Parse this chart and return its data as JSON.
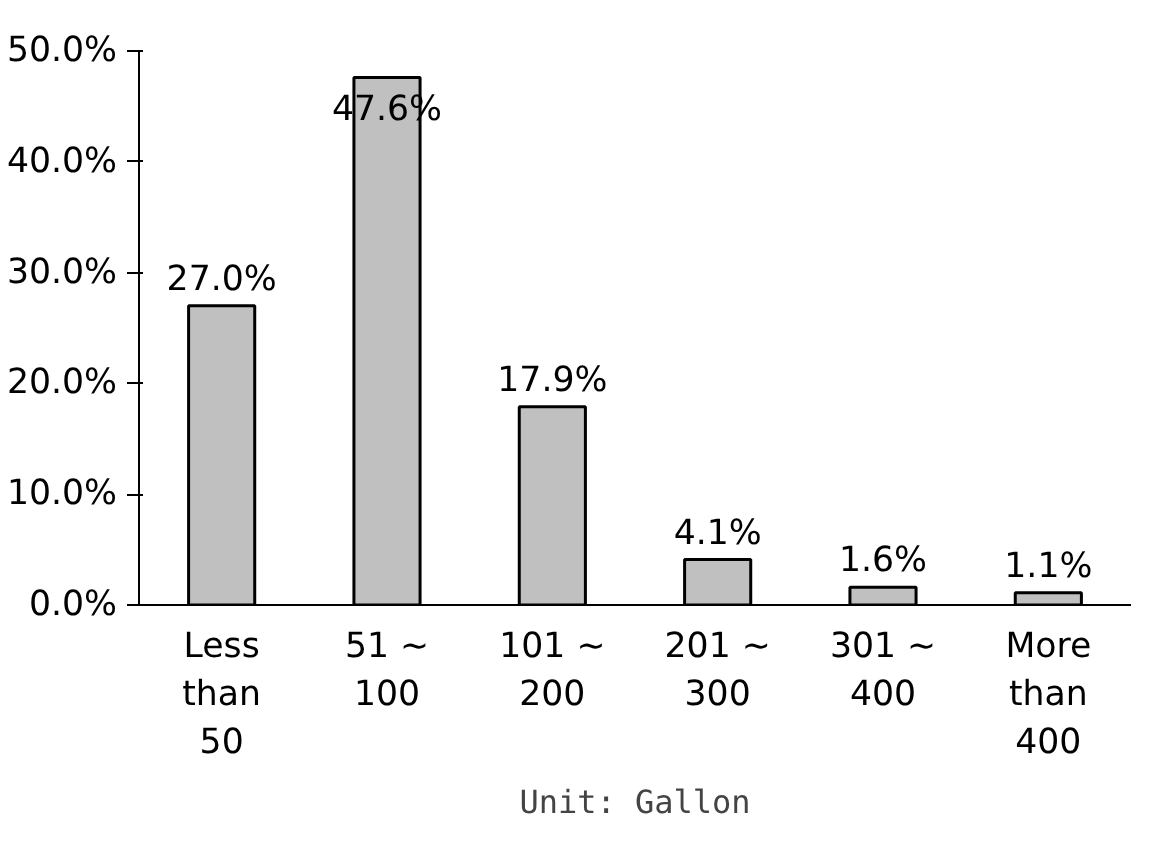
{
  "chart_data": {
    "type": "bar",
    "categories": [
      "Less\nthan\n50",
      "51 ~\n100",
      "101 ~\n200",
      "201 ~\n300",
      "301 ~\n400",
      "More\nthan\n400"
    ],
    "values": [
      27.0,
      47.6,
      17.9,
      4.1,
      1.6,
      1.1
    ],
    "value_labels": [
      "27.0%",
      "47.6%",
      "17.9%",
      "4.1%",
      "1.6%",
      "1.1%"
    ],
    "color": "#c0c0c0",
    "ylim": [
      0,
      50
    ],
    "yticks": [
      {
        "value": 0,
        "label": "0.0%"
      },
      {
        "value": 10,
        "label": "10.0%"
      },
      {
        "value": 20,
        "label": "20.0%"
      },
      {
        "value": 30,
        "label": "30.0%"
      },
      {
        "value": 40,
        "label": "40.0%"
      },
      {
        "value": 50,
        "label": "50.0%"
      }
    ],
    "grid": false,
    "annotations": [
      "Unit: Gallon"
    ]
  }
}
